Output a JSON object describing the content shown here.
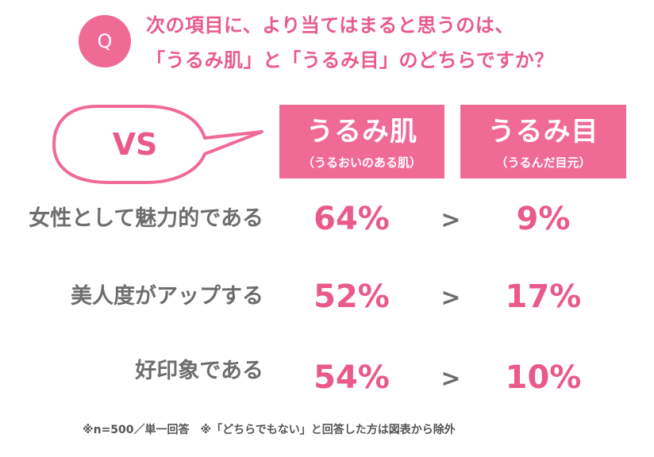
{
  "header": {
    "badge": "Q",
    "question_line1": "次の項目に、より当てはまると思うのは、",
    "question_line2": "「うるみ肌」と「うるみ目」のどちらですか？"
  },
  "vs_label": "VS",
  "columns": [
    {
      "title": "うるみ肌",
      "subtitle": "（うるおいのある肌）"
    },
    {
      "title": "うるみ目",
      "subtitle": "（うるんだ目元）"
    }
  ],
  "rows": [
    {
      "label": "女性として魅力的である",
      "left": "64%",
      "comparator": ">",
      "right": "9%"
    },
    {
      "label": "美人度がアップする",
      "left": "52%",
      "comparator": ">",
      "right": "17%"
    },
    {
      "label": "好印象である",
      "left": "54%",
      "comparator": ">",
      "right": "10%"
    }
  ],
  "footnote": "※n=500／単一回答　※「どちらでもない」と回答した方は図表から除外",
  "colors": {
    "accent": "#f06a96",
    "accent_text": "#e95a8b",
    "label_gray": "#6e6e6e"
  }
}
